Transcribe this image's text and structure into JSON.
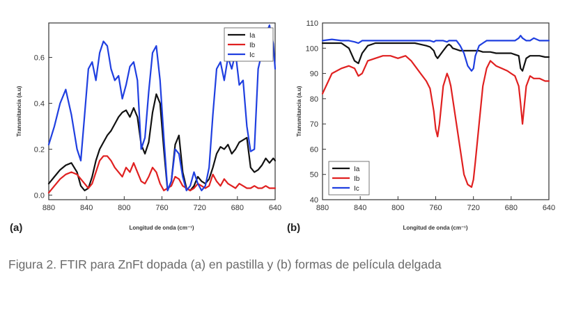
{
  "caption": "Figura 2. FTIR para ZnFt dopada (a) en pastilla y (b) formas de película delgada",
  "colors": {
    "Ia": "#111111",
    "Ib": "#e02020",
    "Ic": "#1f3fe0"
  },
  "chart_data": [
    {
      "type": "line",
      "panel_label": "(a)",
      "xlabel": "Longitud de onda (cm⁻¹)",
      "ylabel": "Transmitancia (a.u)",
      "xlim": [
        880,
        640
      ],
      "ylim": [
        -0.02,
        0.75
      ],
      "xticks": [
        880,
        840,
        800,
        760,
        720,
        680,
        640
      ],
      "yticks": [
        0.0,
        0.2,
        0.4,
        0.6
      ],
      "ytick_labels": [
        "0.0",
        "0.2",
        "0.4",
        "0.6"
      ],
      "legend_position": "top-right",
      "x": [
        880,
        874,
        868,
        862,
        856,
        850,
        846,
        842,
        838,
        834,
        830,
        826,
        822,
        818,
        814,
        810,
        806,
        802,
        798,
        794,
        790,
        786,
        782,
        778,
        774,
        770,
        766,
        762,
        758,
        754,
        750,
        746,
        742,
        738,
        734,
        730,
        726,
        722,
        718,
        714,
        710,
        706,
        702,
        698,
        694,
        690,
        686,
        682,
        678,
        674,
        670,
        666,
        662,
        658,
        654,
        650,
        646,
        642,
        640
      ],
      "series": [
        {
          "name": "Ia",
          "values": [
            0.05,
            0.08,
            0.11,
            0.13,
            0.14,
            0.1,
            0.04,
            0.02,
            0.03,
            0.08,
            0.15,
            0.2,
            0.23,
            0.26,
            0.28,
            0.31,
            0.34,
            0.36,
            0.37,
            0.34,
            0.38,
            0.34,
            0.22,
            0.18,
            0.23,
            0.36,
            0.44,
            0.4,
            0.2,
            0.02,
            0.06,
            0.22,
            0.26,
            0.1,
            0.03,
            0.02,
            0.04,
            0.08,
            0.06,
            0.05,
            0.07,
            0.12,
            0.18,
            0.21,
            0.2,
            0.22,
            0.18,
            0.2,
            0.23,
            0.24,
            0.25,
            0.12,
            0.1,
            0.11,
            0.13,
            0.16,
            0.14,
            0.16,
            0.15
          ]
        },
        {
          "name": "Ib",
          "values": [
            0.01,
            0.04,
            0.07,
            0.09,
            0.1,
            0.09,
            0.07,
            0.05,
            0.03,
            0.05,
            0.1,
            0.15,
            0.17,
            0.17,
            0.15,
            0.12,
            0.1,
            0.08,
            0.12,
            0.1,
            0.14,
            0.1,
            0.06,
            0.05,
            0.08,
            0.12,
            0.1,
            0.05,
            0.02,
            0.03,
            0.04,
            0.08,
            0.07,
            0.04,
            0.03,
            0.02,
            0.03,
            0.05,
            0.04,
            0.03,
            0.04,
            0.09,
            0.06,
            0.04,
            0.07,
            0.05,
            0.04,
            0.03,
            0.05,
            0.04,
            0.03,
            0.03,
            0.04,
            0.03,
            0.03,
            0.04,
            0.03,
            0.03,
            0.03
          ]
        },
        {
          "name": "Ic",
          "values": [
            0.22,
            0.3,
            0.4,
            0.46,
            0.35,
            0.2,
            0.15,
            0.35,
            0.55,
            0.58,
            0.5,
            0.62,
            0.67,
            0.65,
            0.55,
            0.5,
            0.52,
            0.42,
            0.48,
            0.56,
            0.58,
            0.5,
            0.2,
            0.25,
            0.45,
            0.62,
            0.65,
            0.5,
            0.25,
            0.02,
            0.06,
            0.2,
            0.18,
            0.08,
            0.02,
            0.04,
            0.1,
            0.05,
            0.02,
            0.04,
            0.12,
            0.35,
            0.55,
            0.58,
            0.5,
            0.6,
            0.55,
            0.62,
            0.48,
            0.5,
            0.3,
            0.19,
            0.2,
            0.55,
            0.62,
            0.7,
            0.74,
            0.66,
            0.55
          ]
        }
      ]
    },
    {
      "type": "line",
      "panel_label": "(b)",
      "xlabel": "Longitud de onda (cm⁻¹)",
      "ylabel": "Transmitancia (a.u)",
      "xlim": [
        880,
        640
      ],
      "ylim": [
        40,
        110
      ],
      "xticks": [
        880,
        840,
        800,
        760,
        720,
        680,
        640
      ],
      "yticks": [
        40,
        50,
        60,
        70,
        80,
        90,
        100,
        110
      ],
      "ytick_labels": [
        "40",
        "50",
        "60",
        "70",
        "80",
        "90",
        "100",
        "110"
      ],
      "legend_position": "bottom-left",
      "x": [
        880,
        870,
        860,
        852,
        846,
        842,
        838,
        832,
        824,
        816,
        808,
        800,
        792,
        786,
        782,
        776,
        770,
        766,
        762,
        760,
        758,
        756,
        752,
        748,
        746,
        744,
        742,
        738,
        734,
        730,
        726,
        722,
        720,
        718,
        714,
        710,
        706,
        702,
        696,
        690,
        684,
        680,
        676,
        672,
        670,
        668,
        664,
        660,
        656,
        650,
        644,
        640
      ],
      "series": [
        {
          "name": "Ia",
          "values": [
            102,
            102,
            102,
            100,
            95,
            94,
            98,
            101,
            102,
            102,
            102,
            102,
            102,
            102,
            102,
            101.5,
            101,
            100.5,
            99,
            97,
            96,
            97,
            99,
            101,
            101.5,
            101,
            100,
            99.5,
            99,
            99,
            99,
            99,
            99,
            99,
            99,
            98.5,
            98.5,
            98.5,
            98,
            98,
            98,
            98,
            97.5,
            97,
            92,
            91,
            96,
            97,
            97,
            97,
            96.5,
            96.5
          ]
        },
        {
          "name": "Ib",
          "values": [
            82,
            90,
            92,
            93,
            92,
            89,
            90,
            95,
            96,
            97,
            97,
            96,
            97,
            95,
            93,
            90,
            87,
            84,
            75,
            68,
            65,
            70,
            85,
            90,
            88,
            85,
            80,
            70,
            60,
            50,
            46,
            45,
            48,
            55,
            70,
            85,
            92,
            95,
            93,
            92,
            91,
            90,
            89,
            85,
            78,
            70,
            85,
            89,
            88,
            88,
            87,
            87
          ]
        },
        {
          "name": "Ic",
          "values": [
            103,
            103.5,
            103,
            103,
            102.5,
            102,
            103,
            103,
            103,
            103,
            103,
            103,
            103,
            103,
            103,
            103,
            103,
            103,
            102.5,
            103,
            103,
            103,
            103,
            102.5,
            103,
            103,
            103,
            103,
            101,
            98,
            93,
            91,
            92,
            97,
            101,
            102,
            103,
            103,
            103,
            103,
            103,
            103,
            103,
            104,
            105,
            104,
            103,
            103,
            104,
            103,
            103,
            103
          ]
        }
      ]
    }
  ]
}
